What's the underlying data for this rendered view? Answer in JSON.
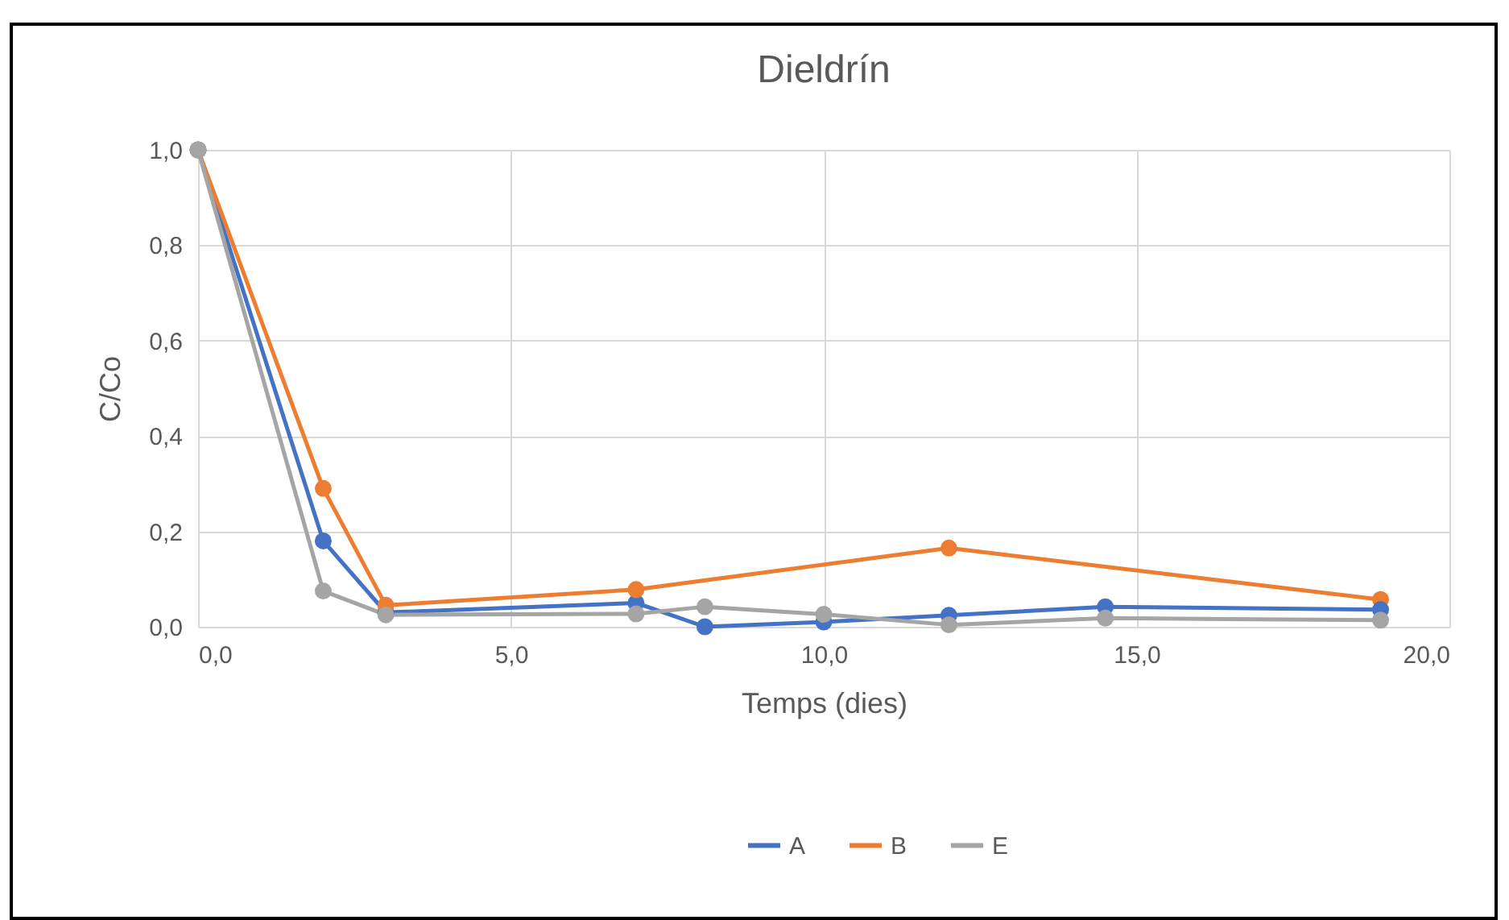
{
  "chart_data": {
    "type": "line",
    "title": "Dieldrín",
    "xlabel": "Temps (dies)",
    "ylabel": "C/Co",
    "xlim": [
      0,
      20
    ],
    "ylim": [
      0,
      1
    ],
    "xticks": [
      {
        "value": 0,
        "label": "0,0"
      },
      {
        "value": 5,
        "label": "5,0"
      },
      {
        "value": 10,
        "label": "10,0"
      },
      {
        "value": 15,
        "label": "15,0"
      },
      {
        "value": 20,
        "label": "20,0"
      }
    ],
    "yticks": [
      {
        "value": 0,
        "label": "0,0"
      },
      {
        "value": 0.2,
        "label": "0,2"
      },
      {
        "value": 0.4,
        "label": "0,4"
      },
      {
        "value": 0.6,
        "label": "0,6"
      },
      {
        "value": 0.8,
        "label": "0,8"
      },
      {
        "value": 1,
        "label": "1,0"
      }
    ],
    "grid": true,
    "legend": "bottom",
    "marker": "circle",
    "line_style": "solid",
    "series": [
      {
        "name": "A",
        "color": "#4472c4",
        "x": [
          0,
          2,
          3,
          7,
          8.1,
          10,
          12,
          14.5,
          18.9
        ],
        "values": [
          1.0,
          0.18,
          0.03,
          0.05,
          0.0,
          0.01,
          0.024,
          0.042,
          0.036
        ]
      },
      {
        "name": "B",
        "color": "#ed7d31",
        "x": [
          0,
          2,
          3,
          7,
          12,
          18.9
        ],
        "values": [
          1.0,
          0.29,
          0.045,
          0.078,
          0.165,
          0.057
        ]
      },
      {
        "name": "E",
        "color": "#a5a5a5",
        "x": [
          0,
          2,
          3,
          7,
          8.1,
          10,
          12,
          14.5,
          18.9
        ],
        "values": [
          1.0,
          0.075,
          0.025,
          0.027,
          0.042,
          0.026,
          0.004,
          0.018,
          0.014
        ]
      }
    ]
  }
}
